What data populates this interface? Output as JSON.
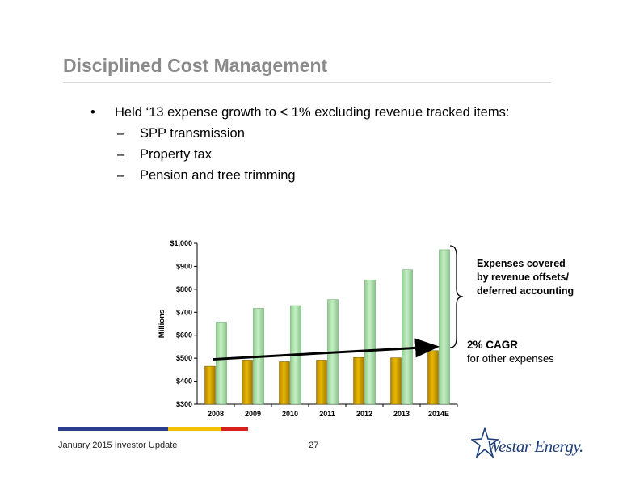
{
  "slide": {
    "title": "Disciplined Cost Management",
    "bullet": {
      "marker": "•",
      "text": "Held ‘13 expense growth to < 1% excluding revenue tracked items:",
      "sub_marker": "–",
      "sub_items": [
        "SPP transmission",
        "Property tax",
        "Pension and tree trimming"
      ]
    },
    "note_revenue": [
      "Expenses covered",
      "by revenue offsets/",
      "deferred accounting"
    ],
    "cagr_title": "2% CAGR",
    "cagr_sub": "for other expenses",
    "footer_left": "January 2015 Investor Update",
    "page_number": "27",
    "logo_text": "Westar Energy.",
    "colors": {
      "title": "#8a8a8a",
      "bar_other": "#e6b800",
      "bar_total": "#c6eec6",
      "footer_blue": "#2a3d8f",
      "footer_yellow": "#f2c200",
      "footer_red": "#d92020",
      "logo": "#1f3f7a"
    }
  },
  "chart_data": {
    "type": "bar",
    "categories": [
      "2008",
      "2009",
      "2010",
      "2011",
      "2012",
      "2013",
      "2014E"
    ],
    "series": [
      {
        "values": [
          465,
          492,
          485,
          492,
          503,
          502,
          533
        ]
      },
      {
        "values": [
          657,
          717,
          729,
          755,
          840,
          885,
          972
        ]
      }
    ],
    "ylabel": "Millions",
    "ylim": [
      300,
      1000
    ],
    "yticks": [
      300,
      400,
      500,
      600,
      700,
      800,
      900,
      1000
    ],
    "ytick_labels": [
      "$300",
      "$400",
      "$500",
      "$600",
      "$700",
      "$800",
      "$900",
      "$1,000"
    ],
    "trend": {
      "from": [
        "2008",
        495
      ],
      "to": [
        "2014E",
        550
      ]
    },
    "grid": false,
    "legend": "none"
  }
}
